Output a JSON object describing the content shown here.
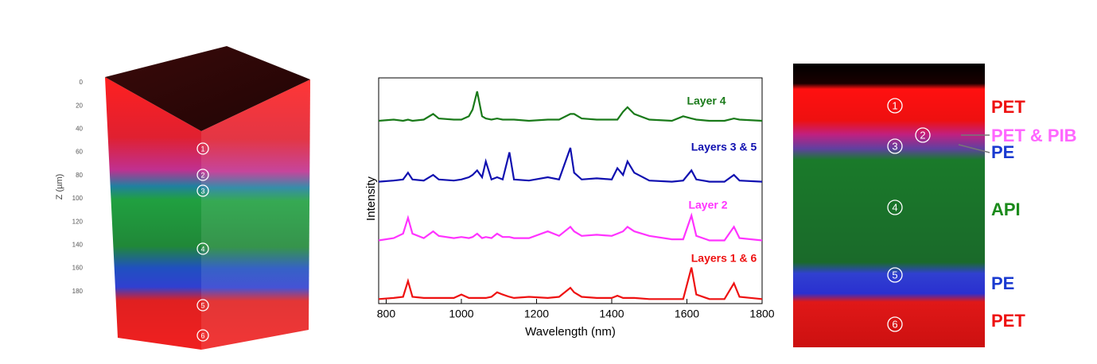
{
  "left_panel": {
    "axis_label": "Z (µm)",
    "ticks": [
      0,
      20,
      40,
      60,
      80,
      100,
      120,
      140,
      160,
      180
    ],
    "markers": [
      "1",
      "2",
      "3",
      "4",
      "5",
      "6"
    ]
  },
  "chart_data": {
    "type": "line",
    "xlabel": "Wavelength (nm)",
    "ylabel": "Intensity",
    "xlim": [
      780,
      1800
    ],
    "xticks": [
      800,
      1000,
      1200,
      1400,
      1600,
      1800
    ],
    "ylim": [
      0,
      100
    ],
    "x": [
      780,
      820,
      845,
      858,
      870,
      900,
      925,
      940,
      980,
      1000,
      1020,
      1030,
      1042,
      1055,
      1065,
      1080,
      1095,
      1110,
      1128,
      1140,
      1180,
      1230,
      1260,
      1290,
      1300,
      1320,
      1360,
      1400,
      1415,
      1430,
      1442,
      1460,
      1500,
      1560,
      1590,
      1612,
      1625,
      1660,
      1700,
      1725,
      1740,
      1800
    ],
    "series": [
      {
        "name": "Layer 4",
        "color": "#1a7a1a",
        "values": [
          81,
          81.5,
          81,
          81.5,
          81,
          81.5,
          84,
          82,
          81.5,
          81.5,
          83,
          86,
          94,
          83,
          82,
          81.5,
          82,
          81.5,
          81.5,
          81.5,
          81,
          81.5,
          81.5,
          84,
          84,
          82,
          81.5,
          81.5,
          81.5,
          85,
          87,
          84,
          81.5,
          81,
          83,
          82,
          81.5,
          81,
          81,
          82,
          81.5,
          81
        ]
      },
      {
        "name": "Layers 3 & 5",
        "color": "#1010b0",
        "values": [
          54,
          54.5,
          55,
          58,
          55,
          54.5,
          57,
          55,
          54.5,
          55,
          56,
          57,
          59,
          56,
          63,
          55,
          56,
          55,
          67,
          55,
          54.5,
          56,
          55,
          69,
          58,
          55,
          55.5,
          55,
          60,
          57,
          63,
          58,
          54.5,
          54,
          54.5,
          59,
          55,
          54,
          54,
          57,
          54.5,
          54
        ]
      },
      {
        "name": "Layer 2",
        "color": "#ff33ff",
        "values": [
          28,
          29,
          31,
          38,
          31,
          29,
          32,
          30,
          29,
          29.5,
          29,
          29.5,
          31,
          29,
          29.5,
          29,
          31,
          29.5,
          29.5,
          29,
          29,
          32,
          30,
          34,
          32,
          30,
          30.5,
          30,
          31,
          32,
          34,
          32,
          30,
          28.5,
          28.5,
          39,
          30,
          28,
          28,
          34,
          29,
          28
        ]
      },
      {
        "name": "Layers 1 & 6",
        "color": "#ee1111",
        "values": [
          2,
          2.5,
          3,
          10,
          3,
          2.5,
          2.5,
          2.5,
          2.5,
          4,
          2.5,
          2.5,
          2.5,
          2.5,
          2.5,
          3,
          5,
          4,
          3,
          2.5,
          3,
          2.5,
          3,
          7,
          5,
          3,
          2.5,
          2.5,
          3.5,
          2.5,
          2.5,
          2.5,
          2,
          2,
          2,
          16,
          4,
          2,
          2,
          9,
          3,
          2
        ]
      }
    ]
  },
  "right_panel": {
    "markers": [
      "1",
      "2",
      "3",
      "4",
      "5",
      "6"
    ],
    "labels": [
      "PET",
      "PET & PIB",
      "PE",
      "API",
      "PE",
      "PET"
    ]
  }
}
